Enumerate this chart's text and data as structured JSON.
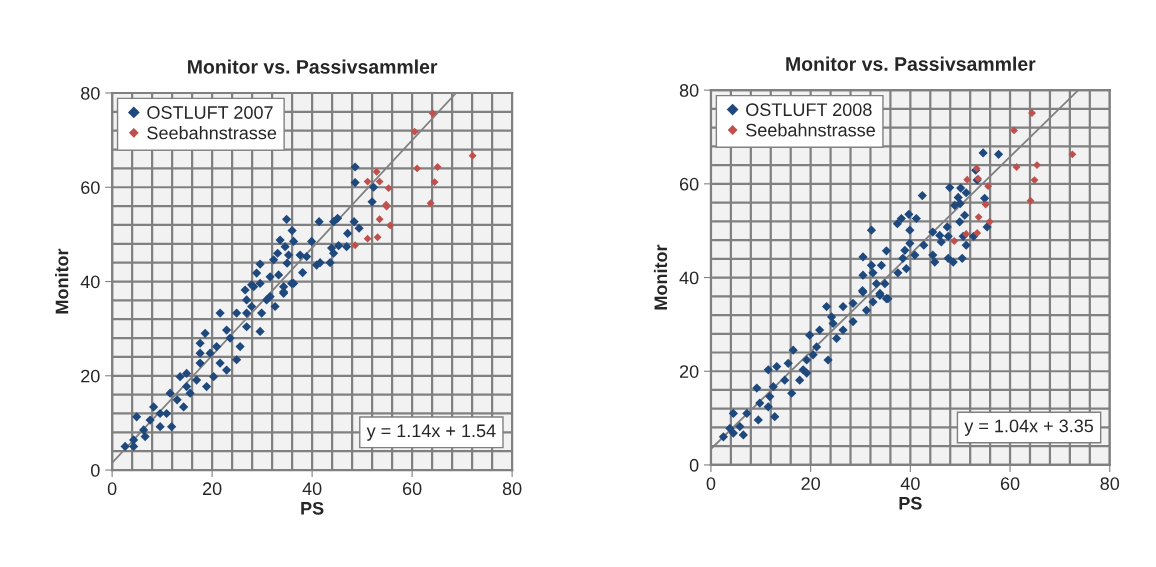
{
  "chart_data": [
    {
      "type": "scatter",
      "title": "Monitor vs. Passivsammler",
      "xlabel": "PS",
      "ylabel": "Monitor",
      "xlim": [
        0,
        80
      ],
      "ylim": [
        0,
        80
      ],
      "xticks": [
        0,
        {
          "value": 4,
          "label": null
        },
        {
          "value": 8,
          "label": null
        },
        {
          "value": 12,
          "label": null
        },
        {
          "value": 16,
          "label": null
        },
        20,
        {
          "value": 24,
          "label": null
        },
        {
          "value": 28,
          "label": null
        },
        {
          "value": 32,
          "label": null
        },
        {
          "value": 36,
          "label": null
        },
        40,
        {
          "value": 44,
          "label": null
        },
        {
          "value": 48,
          "label": null
        },
        {
          "value": 52,
          "label": null
        },
        {
          "value": 56,
          "label": null
        },
        60,
        {
          "value": 64,
          "label": null
        },
        {
          "value": 68,
          "label": null
        },
        {
          "value": 72,
          "label": null
        },
        {
          "value": 76,
          "label": null
        },
        80
      ],
      "yticks": [
        0,
        {
          "value": 4,
          "label": null
        },
        {
          "value": 8,
          "label": null
        },
        {
          "value": 12,
          "label": null
        },
        {
          "value": 16,
          "label": null
        },
        20,
        {
          "value": 24,
          "label": null
        },
        {
          "value": 28,
          "label": null
        },
        {
          "value": 32,
          "label": null
        },
        {
          "value": 36,
          "label": null
        },
        40,
        {
          "value": 44,
          "label": null
        },
        {
          "value": 48,
          "label": null
        },
        {
          "value": 52,
          "label": null
        },
        {
          "value": 56,
          "label": null
        },
        60,
        {
          "value": 64,
          "label": null
        },
        {
          "value": 68,
          "label": null
        },
        {
          "value": 72,
          "label": null
        },
        {
          "value": 76,
          "label": null
        },
        80
      ],
      "grid": true,
      "legend": "top left",
      "marker": "diamond",
      "annotations": [
        "y = 1.14x + 1.54"
      ],
      "series": [
        {
          "name": "OSTLUFT 2007",
          "color": "#1f497d",
          "x": [
            48.6,
            48.6,
            52.3,
            52.0,
            34.9,
            36.0,
            41.4,
            44.3,
            45.1,
            48.4,
            49.4,
            47.1,
            46.9,
            45.3,
            43.9,
            44.3,
            43.6,
            41.6,
            40.9,
            39.9,
            33.6,
            34.6,
            36.3,
            33.1,
            35.3,
            37.6,
            38.9,
            32.3,
            35.0,
            38.1,
            29.6,
            28.9,
            31.6,
            33.3,
            36.3,
            34.3,
            29.6,
            27.9,
            26.6,
            31.6,
            35.9,
            34.3,
            32.6,
            29.9,
            28.3,
            26.9,
            24.9,
            21.6,
            22.9,
            29.6,
            26.9,
            18.6,
            20.9,
            25.6,
            24.9,
            17.6,
            17.6,
            22.9,
            20.3,
            13.6,
            14.9,
            16.9,
            18.9,
            15.6,
            11.6,
            13.0,
            8.3,
            11.9,
            9.6,
            4.9,
            7.6,
            6.3,
            6.6,
            4.3,
            2.6,
            4.3,
            10.9,
            14.3,
            19.6,
            23.6,
            26.9,
            27.9,
            30.9,
            34.3,
            17.6,
            21.6,
            14.9,
            9.6
          ],
          "values": [
            64.3,
            61.0,
            60.0,
            56.9,
            53.2,
            50.8,
            52.7,
            52.7,
            53.4,
            52.7,
            51.3,
            50.2,
            47.4,
            47.6,
            47.1,
            46.0,
            44.0,
            44.0,
            43.5,
            48.5,
            48.8,
            47.4,
            48.5,
            46.0,
            45.6,
            45.6,
            45.3,
            44.6,
            43.9,
            41.9,
            43.7,
            41.8,
            41.0,
            41.4,
            39.6,
            37.8,
            39.6,
            39.3,
            38.2,
            36.8,
            39.6,
            37.5,
            34.7,
            33.3,
            38.9,
            36.1,
            33.3,
            33.3,
            29.7,
            29.4,
            30.4,
            29.0,
            26.2,
            26.2,
            23.4,
            24.8,
            22.7,
            21.2,
            19.8,
            19.8,
            20.5,
            19.1,
            17.7,
            16.3,
            16.3,
            14.9,
            13.4,
            9.2,
            9.2,
            11.3,
            10.6,
            8.5,
            7.1,
            6.4,
            5.0,
            5.0,
            12.0,
            13.4,
            24.8,
            28.0,
            33.3,
            34.7,
            36.1,
            38.9,
            26.9,
            22.7,
            17.7,
            12.0
          ]
        },
        {
          "name": "Seebahnstrasse",
          "color": "#c0504d",
          "x": [
            64.1,
            60.5,
            72.1,
            61.0,
            65.1,
            64.5,
            63.7,
            52.9,
            51.1,
            53.5,
            55.3,
            54.8,
            54.9,
            53.5,
            55.6,
            51.1,
            53.1,
            48.6
          ],
          "values": [
            75.7,
            71.8,
            66.7,
            64.0,
            64.3,
            61.1,
            56.6,
            63.3,
            61.2,
            61.2,
            59.8,
            56.3,
            55.9,
            53.2,
            51.9,
            49.1,
            49.4,
            47.7
          ]
        },
        {
          "type": "line",
          "color": "#808080",
          "marker": "none",
          "x": [
            0,
            68.8
          ],
          "values": [
            1.5,
            80
          ]
        }
      ]
    },
    {
      "type": "scatter",
      "title": "Monitor vs. Passivsammler",
      "xlabel": "PS",
      "ylabel": "Monitor",
      "xlim": [
        0,
        80
      ],
      "ylim": [
        0,
        80
      ],
      "xticks": [
        0,
        {
          "value": 4,
          "label": null
        },
        {
          "value": 8,
          "label": null
        },
        {
          "value": 12,
          "label": null
        },
        {
          "value": 16,
          "label": null
        },
        20,
        {
          "value": 24,
          "label": null
        },
        {
          "value": 28,
          "label": null
        },
        {
          "value": 32,
          "label": null
        },
        {
          "value": 36,
          "label": null
        },
        40,
        {
          "value": 44,
          "label": null
        },
        {
          "value": 48,
          "label": null
        },
        {
          "value": 52,
          "label": null
        },
        {
          "value": 56,
          "label": null
        },
        60,
        {
          "value": 64,
          "label": null
        },
        {
          "value": 68,
          "label": null
        },
        {
          "value": 72,
          "label": null
        },
        {
          "value": 76,
          "label": null
        },
        80
      ],
      "yticks": [
        0,
        {
          "value": 4,
          "label": null
        },
        {
          "value": 8,
          "label": null
        },
        {
          "value": 12,
          "label": null
        },
        {
          "value": 16,
          "label": null
        },
        20,
        {
          "value": 24,
          "label": null
        },
        {
          "value": 28,
          "label": null
        },
        {
          "value": 32,
          "label": null
        },
        {
          "value": 36,
          "label": null
        },
        40,
        {
          "value": 44,
          "label": null
        },
        {
          "value": 48,
          "label": null
        },
        {
          "value": 52,
          "label": null
        },
        {
          "value": 56,
          "label": null
        },
        60,
        {
          "value": 64,
          "label": null
        },
        {
          "value": 68,
          "label": null
        },
        {
          "value": 72,
          "label": null
        },
        {
          "value": 76,
          "label": null
        },
        80
      ],
      "grid": true,
      "legend": "top left",
      "marker": "diamond",
      "annotations": [
        "y = 1.04x + 3.35"
      ],
      "series": [
        {
          "name": "OSTLUFT 2008",
          "color": "#1f497d",
          "x": [
            54.6,
            57.7,
            53.1,
            53.4,
            47.9,
            50.1,
            51.2,
            49.6,
            42.4,
            50.0,
            48.9,
            54.9,
            50.9,
            49.9,
            47.4,
            39.7,
            38.2,
            41.2,
            37.4,
            39.9,
            32.2,
            44.5,
            45.9,
            47.6,
            50.6,
            55.4,
            52.7,
            51.2,
            46.2,
            39.9,
            42.7,
            38.9,
            35.2,
            44.5,
            44.9,
            47.6,
            48.6,
            50.4,
            40.9,
            38.5,
            30.5,
            32.2,
            34.2,
            30.5,
            32.5,
            37.5,
            39.2,
            33.2,
            30.4,
            33.9,
            35.5,
            34.9,
            35.2,
            32.5,
            30.5,
            33.9,
            28.5,
            26.5,
            23.2,
            24.2,
            28.5,
            26.5,
            25.2,
            19.8,
            21.8,
            21.2,
            16.5,
            23.5,
            19.2,
            18.5,
            19.2,
            11.5,
            13.2,
            14.8,
            16.2,
            12.5,
            9.2,
            11.8,
            9.8,
            11.5,
            12.8,
            9.5,
            7.2,
            4.5,
            5.8,
            3.8,
            6.5,
            2.5,
            4.5,
            17.8,
            15.5,
            20.5,
            24.5,
            31.2
          ],
          "values": [
            66.6,
            66.3,
            62.9,
            60.8,
            59.2,
            59.1,
            58.1,
            57.1,
            57.5,
            55.8,
            55.4,
            56.9,
            53.3,
            51.9,
            50.8,
            53.5,
            52.6,
            52.6,
            51.5,
            50.1,
            50.1,
            49.7,
            49.0,
            48.8,
            48.8,
            50.8,
            48.8,
            46.9,
            47.6,
            47.3,
            46.9,
            45.8,
            45.7,
            44.8,
            43.3,
            44.1,
            43.3,
            44.1,
            44.8,
            44.1,
            44.4,
            42.6,
            42.6,
            40.5,
            41.0,
            41.0,
            41.9,
            38.7,
            37.2,
            36.2,
            35.5,
            38.7,
            35.5,
            34.8,
            36.9,
            36.6,
            34.5,
            33.8,
            33.8,
            31.6,
            30.6,
            28.8,
            27.0,
            27.7,
            28.8,
            25.2,
            24.5,
            22.4,
            22.4,
            20.3,
            19.6,
            20.3,
            21.0,
            18.1,
            15.3,
            16.7,
            16.4,
            14.6,
            13.2,
            12.4,
            10.3,
            9.6,
            11.0,
            11.0,
            8.2,
            7.8,
            6.4,
            6.0,
            6.8,
            18.1,
            21.7,
            23.5,
            30.2,
            33.0
          ]
        },
        {
          "name": "Seebahnstrasse",
          "color": "#c0504d",
          "x": [
            64.4,
            60.8,
            72.5,
            61.3,
            65.4,
            64.9,
            64.1,
            53.3,
            51.4,
            53.6,
            55.6,
            55.1,
            53.7,
            55.9,
            51.2,
            53.4,
            48.8
          ],
          "values": [
            75.1,
            71.4,
            66.3,
            63.6,
            64.0,
            60.8,
            56.4,
            63.3,
            60.9,
            61.1,
            59.5,
            55.6,
            52.9,
            51.9,
            49.3,
            49.5,
            47.8
          ]
        },
        {
          "type": "line",
          "color": "#808080",
          "marker": "none",
          "x": [
            0,
            73.7
          ],
          "values": [
            3.4,
            80
          ]
        }
      ]
    }
  ]
}
